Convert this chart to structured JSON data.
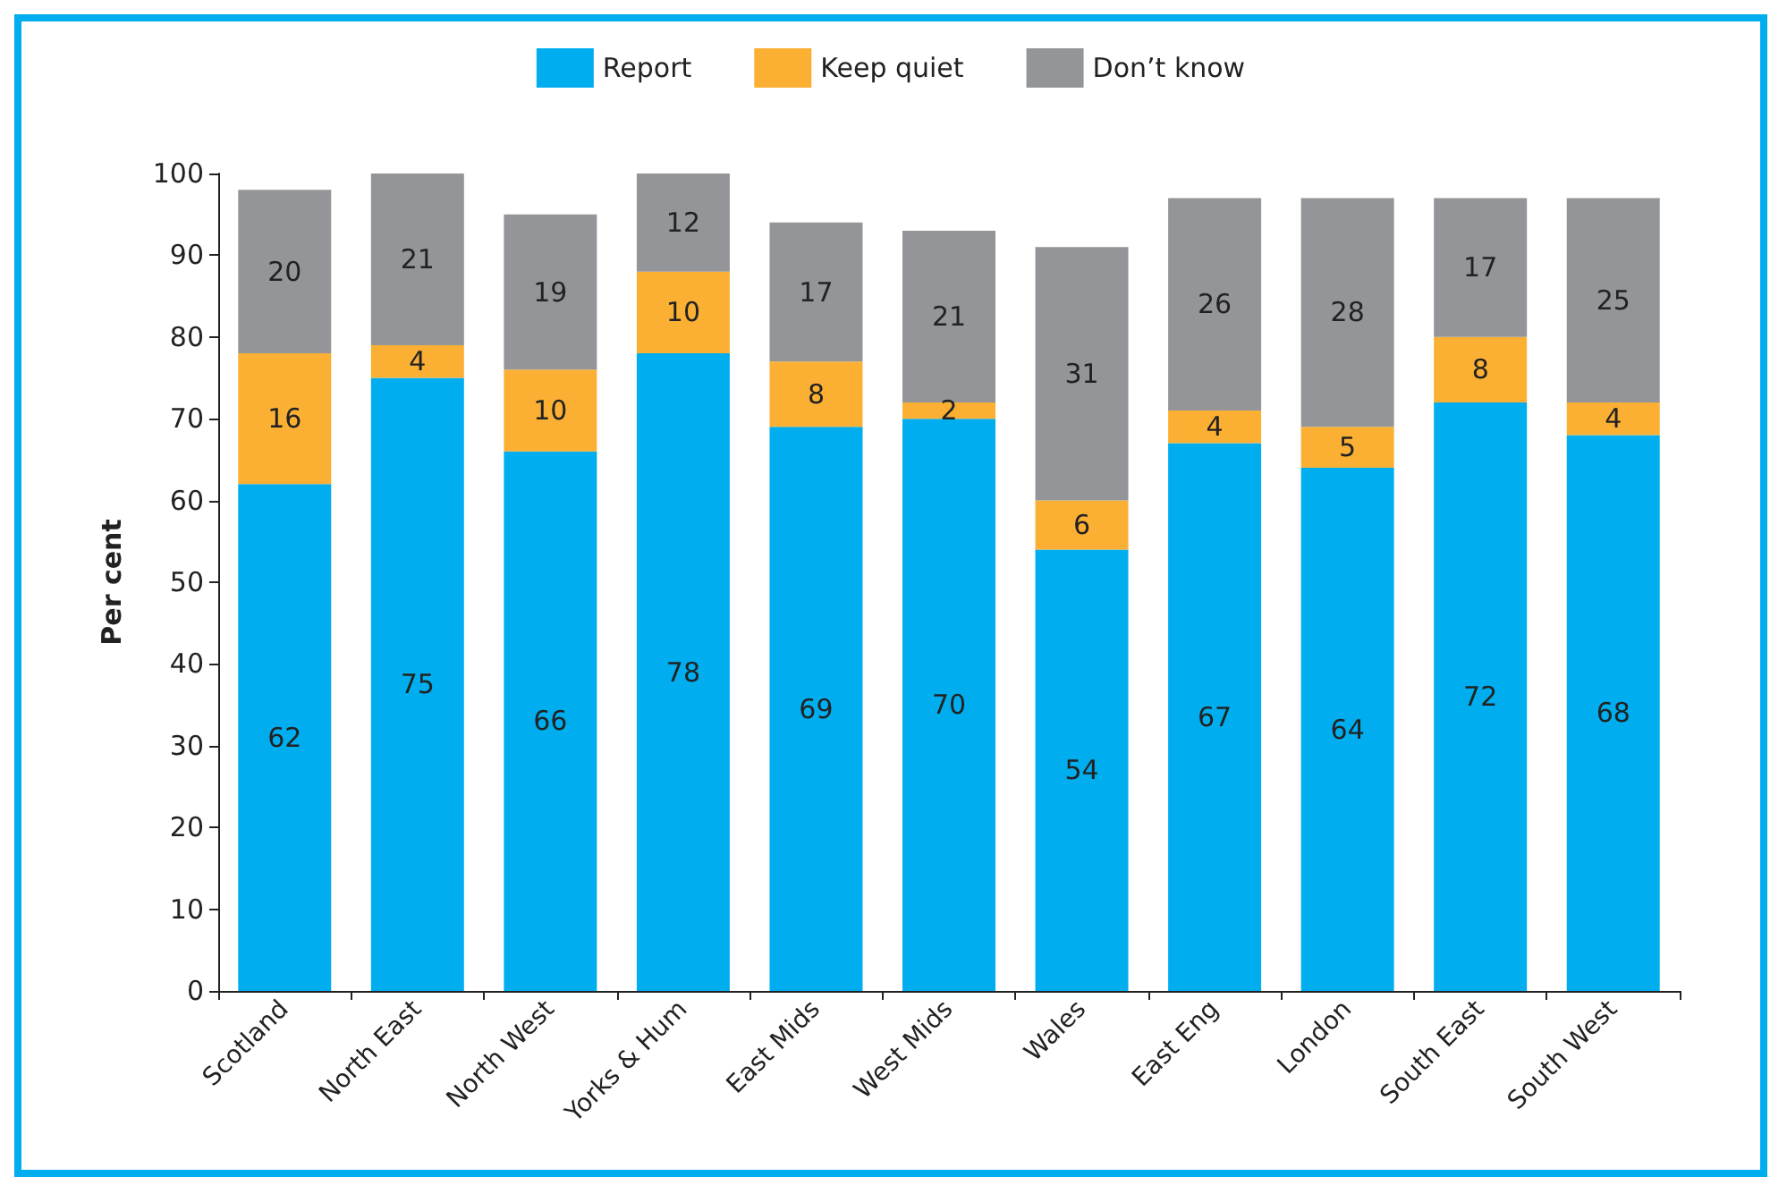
{
  "chart_data": {
    "type": "bar",
    "stacked": true,
    "ylabel": "Per cent",
    "categories": [
      "Scotland",
      "North East",
      "North West",
      "Yorks & Hum",
      "East Mids",
      "West Mids",
      "Wales",
      "East Eng",
      "London",
      "South East",
      "South West"
    ],
    "series": [
      {
        "name": "Report",
        "color": "#00aeef",
        "values": [
          62,
          75,
          66,
          78,
          69,
          70,
          54,
          67,
          64,
          72,
          68
        ]
      },
      {
        "name": "Keep quiet",
        "color": "#fbb034",
        "values": [
          16,
          4,
          10,
          10,
          8,
          2,
          6,
          4,
          5,
          8,
          4
        ]
      },
      {
        "name": "Don’t know",
        "color": "#939598",
        "values": [
          20,
          21,
          19,
          12,
          17,
          21,
          31,
          26,
          28,
          17,
          25
        ]
      }
    ],
    "ylim": [
      0,
      100
    ],
    "yticks": [
      0,
      10,
      20,
      30,
      40,
      50,
      60,
      70,
      80,
      90,
      100
    ],
    "grid": false,
    "legend": "top",
    "data_labels": true
  }
}
